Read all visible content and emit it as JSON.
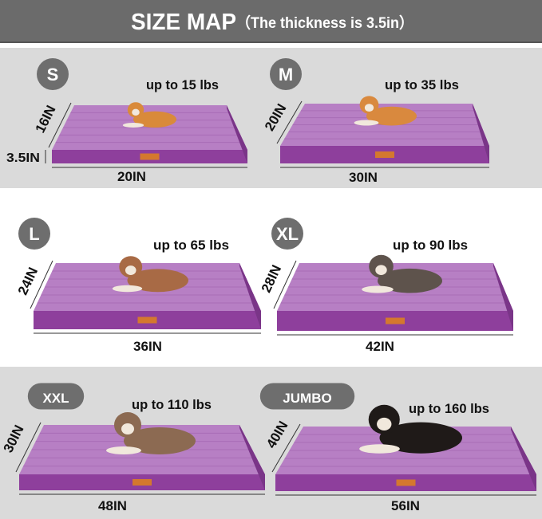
{
  "header": {
    "title": "SIZE MAP",
    "subtitle": "（The thickness is 3.5in）"
  },
  "thickness_label": "3.5IN",
  "sizes": [
    {
      "label": "S",
      "weight": "up to 15 lbs",
      "width": "20IN",
      "depth": "16IN"
    },
    {
      "label": "M",
      "weight": "up to 35 lbs",
      "width": "30IN",
      "depth": "20IN"
    },
    {
      "label": "L",
      "weight": "up to 65 lbs",
      "width": "36IN",
      "depth": "24IN"
    },
    {
      "label": "XL",
      "weight": "up to 90 lbs",
      "width": "42IN",
      "depth": "28IN"
    },
    {
      "label": "XXL",
      "weight": "up to 110 lbs",
      "width": "48IN",
      "depth": "30IN"
    },
    {
      "label": "JUMBO",
      "weight": "up to 160 lbs",
      "width": "56IN",
      "depth": "40IN"
    }
  ],
  "colors": {
    "header_bg": "#6b6b6b",
    "panel_gray": "#dadada",
    "bed_top": "#b77fc4",
    "bed_side": "#8e3f9c",
    "badge": "#6e6e6e"
  }
}
